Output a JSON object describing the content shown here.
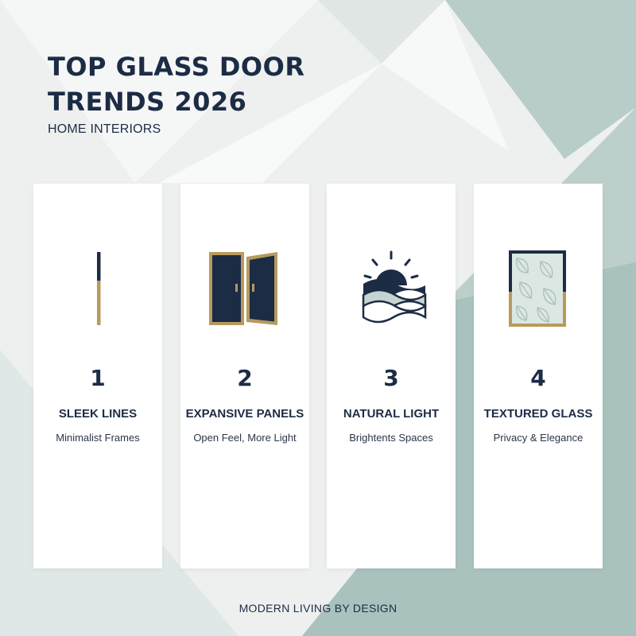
{
  "header": {
    "title_line1": "TOP GLASS DOOR",
    "title_line2": "TRENDS 2026",
    "subtitle": "HOME INTERIORS"
  },
  "cards": [
    {
      "number": "1",
      "title": "SLEEK LINES",
      "subtitle": "Minimalist Frames",
      "icon": "slim-frame-icon"
    },
    {
      "number": "2",
      "title": "EXPANSIVE PANELS",
      "subtitle": "Open Feel, More Light",
      "icon": "double-door-icon"
    },
    {
      "number": "3",
      "title": "NATURAL LIGHT",
      "subtitle": "Brightents Spaces",
      "icon": "sunrise-icon"
    },
    {
      "number": "4",
      "title": "TEXTURED GLASS",
      "subtitle": "Privacy & Elegance",
      "icon": "textured-glass-icon"
    }
  ],
  "footer": {
    "tagline": "MODERN LIVING BY DESIGN"
  },
  "colors": {
    "navy": "#1c2c45",
    "gold": "#b89a5e",
    "sage": "#a9c2be",
    "background": "#eef0ef",
    "card": "#ffffff"
  }
}
